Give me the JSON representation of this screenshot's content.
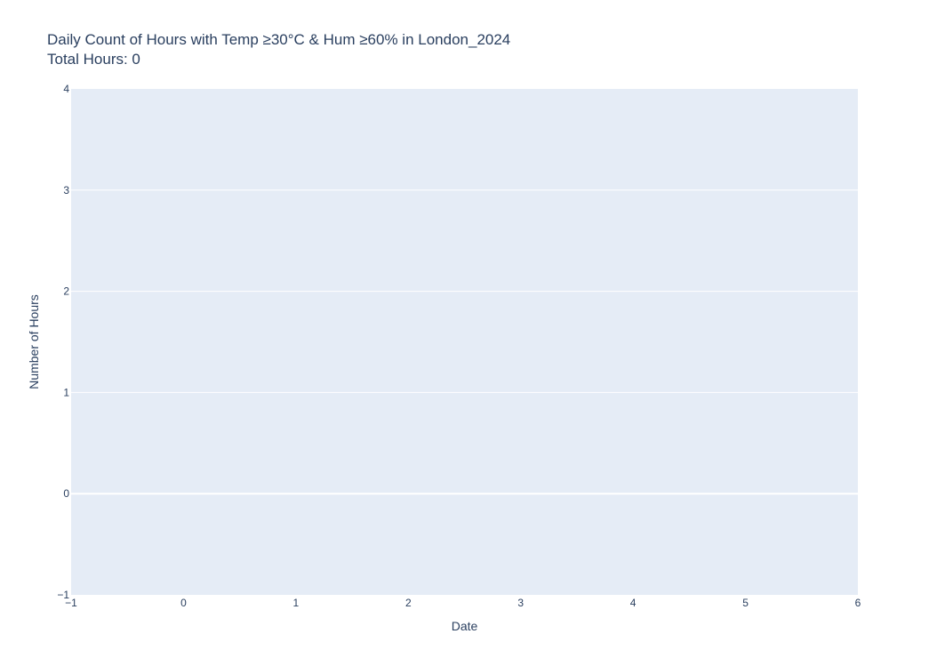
{
  "chart_data": {
    "type": "bar",
    "title": "Daily Count of Hours with Temp ≥30°C & Hum ≥60% in London_2024",
    "subtitle": "Total Hours: 0",
    "xlabel": "Date",
    "ylabel": "Number of Hours",
    "xlim": [
      -1,
      6
    ],
    "ylim": [
      -1,
      4
    ],
    "x_ticks": [
      "−1",
      "0",
      "1",
      "2",
      "3",
      "4",
      "5",
      "6"
    ],
    "y_ticks": [
      "4",
      "3",
      "2",
      "1",
      "0",
      "−1"
    ],
    "x_tick_values": [
      -1,
      0,
      1,
      2,
      3,
      4,
      5,
      6
    ],
    "y_tick_values": [
      4,
      3,
      2,
      1,
      0,
      -1
    ],
    "x": [],
    "values": [],
    "grid": true,
    "legend": "none",
    "colors": {
      "plot_background": "#e5ecf6",
      "grid": "#ffffff",
      "text": "#2a3f5f"
    }
  }
}
